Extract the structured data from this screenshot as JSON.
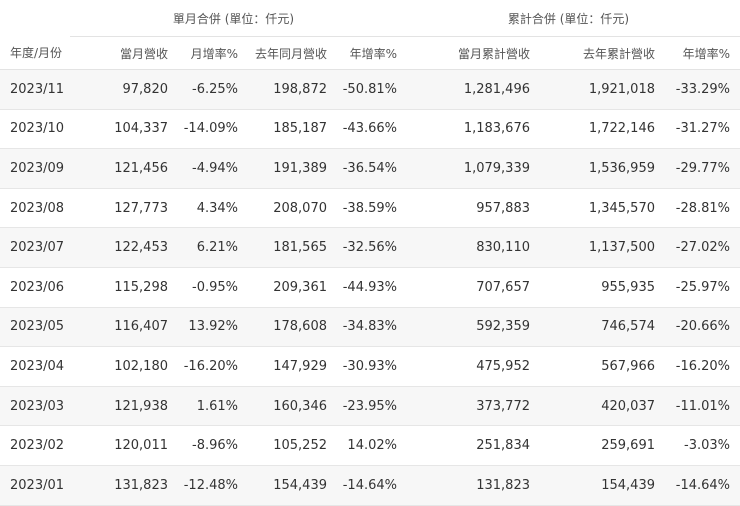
{
  "group_headers": {
    "monthly": "單月合併 (單位：仟元)",
    "cumulative": "累計合併 (單位：仟元)"
  },
  "columns": {
    "period": "年度/月份",
    "month_revenue": "當月營收",
    "mom": "月增率%",
    "last_year_month_revenue": "去年同月營收",
    "yoy": "年增率%",
    "cum_revenue": "當月累計營收",
    "last_year_cum_revenue": "去年累計營收",
    "cum_yoy": "年增率%"
  },
  "rows": [
    {
      "period": "2023/11",
      "month_revenue": "97,820",
      "mom": "-6.25%",
      "last_year_month_revenue": "198,872",
      "yoy": "-50.81%",
      "cum_revenue": "1,281,496",
      "last_year_cum_revenue": "1,921,018",
      "cum_yoy": "-33.29%"
    },
    {
      "period": "2023/10",
      "month_revenue": "104,337",
      "mom": "-14.09%",
      "last_year_month_revenue": "185,187",
      "yoy": "-43.66%",
      "cum_revenue": "1,183,676",
      "last_year_cum_revenue": "1,722,146",
      "cum_yoy": "-31.27%"
    },
    {
      "period": "2023/09",
      "month_revenue": "121,456",
      "mom": "-4.94%",
      "last_year_month_revenue": "191,389",
      "yoy": "-36.54%",
      "cum_revenue": "1,079,339",
      "last_year_cum_revenue": "1,536,959",
      "cum_yoy": "-29.77%"
    },
    {
      "period": "2023/08",
      "month_revenue": "127,773",
      "mom": "4.34%",
      "last_year_month_revenue": "208,070",
      "yoy": "-38.59%",
      "cum_revenue": "957,883",
      "last_year_cum_revenue": "1,345,570",
      "cum_yoy": "-28.81%"
    },
    {
      "period": "2023/07",
      "month_revenue": "122,453",
      "mom": "6.21%",
      "last_year_month_revenue": "181,565",
      "yoy": "-32.56%",
      "cum_revenue": "830,110",
      "last_year_cum_revenue": "1,137,500",
      "cum_yoy": "-27.02%"
    },
    {
      "period": "2023/06",
      "month_revenue": "115,298",
      "mom": "-0.95%",
      "last_year_month_revenue": "209,361",
      "yoy": "-44.93%",
      "cum_revenue": "707,657",
      "last_year_cum_revenue": "955,935",
      "cum_yoy": "-25.97%"
    },
    {
      "period": "2023/05",
      "month_revenue": "116,407",
      "mom": "13.92%",
      "last_year_month_revenue": "178,608",
      "yoy": "-34.83%",
      "cum_revenue": "592,359",
      "last_year_cum_revenue": "746,574",
      "cum_yoy": "-20.66%"
    },
    {
      "period": "2023/04",
      "month_revenue": "102,180",
      "mom": "-16.20%",
      "last_year_month_revenue": "147,929",
      "yoy": "-30.93%",
      "cum_revenue": "475,952",
      "last_year_cum_revenue": "567,966",
      "cum_yoy": "-16.20%"
    },
    {
      "period": "2023/03",
      "month_revenue": "121,938",
      "mom": "1.61%",
      "last_year_month_revenue": "160,346",
      "yoy": "-23.95%",
      "cum_revenue": "373,772",
      "last_year_cum_revenue": "420,037",
      "cum_yoy": "-11.01%"
    },
    {
      "period": "2023/02",
      "month_revenue": "120,011",
      "mom": "-8.96%",
      "last_year_month_revenue": "105,252",
      "yoy": "14.02%",
      "cum_revenue": "251,834",
      "last_year_cum_revenue": "259,691",
      "cum_yoy": "-3.03%"
    },
    {
      "period": "2023/01",
      "month_revenue": "131,823",
      "mom": "-12.48%",
      "last_year_month_revenue": "154,439",
      "yoy": "-14.64%",
      "cum_revenue": "131,823",
      "last_year_cum_revenue": "154,439",
      "cum_yoy": "-14.64%"
    }
  ]
}
